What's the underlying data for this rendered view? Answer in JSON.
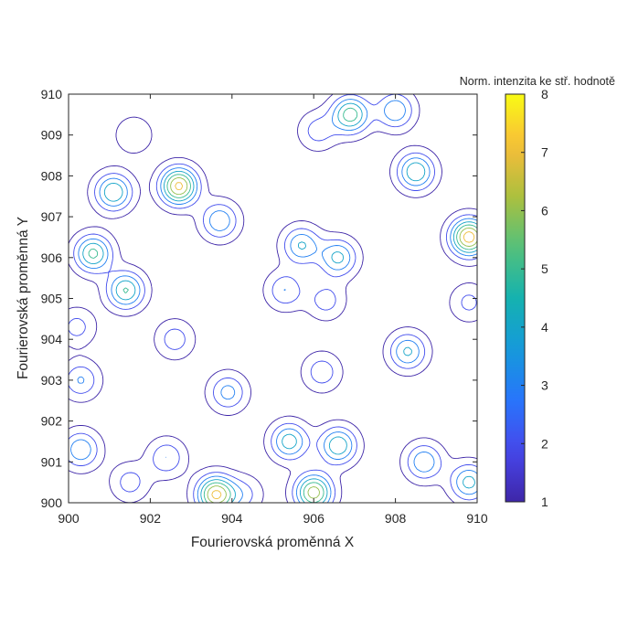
{
  "chart_data": {
    "type": "contour",
    "xlabel": "Fourierovská proměnná X",
    "ylabel": "Fourierovská proměnná Y",
    "xlim": [
      900,
      910
    ],
    "ylim": [
      900,
      910
    ],
    "xticks": [
      "900",
      "902",
      "904",
      "906",
      "908",
      "910"
    ],
    "yticks": [
      "900",
      "901",
      "902",
      "903",
      "904",
      "905",
      "906",
      "907",
      "908",
      "909",
      "910"
    ],
    "colorbar": {
      "label": "Norm. intenzita ke stř. hodnotě",
      "range": [
        1,
        8
      ],
      "ticks": [
        "1",
        "2",
        "3",
        "4",
        "5",
        "6",
        "7",
        "8"
      ],
      "colormap": "parula"
    },
    "contour_levels": [
      1,
      2,
      3,
      4,
      5,
      6,
      7,
      8
    ],
    "grid": false,
    "peaks": [
      {
        "x": 902.7,
        "y": 907.75,
        "value": 7.3
      },
      {
        "x": 909.8,
        "y": 906.5,
        "value": 7.6
      },
      {
        "x": 903.6,
        "y": 900.2,
        "value": 7.2
      },
      {
        "x": 906.0,
        "y": 900.25,
        "value": 6.6
      },
      {
        "x": 900.6,
        "y": 906.1,
        "value": 5.3
      },
      {
        "x": 901.1,
        "y": 907.6,
        "value": 5.0
      },
      {
        "x": 901.4,
        "y": 905.2,
        "value": 5.1
      },
      {
        "x": 906.9,
        "y": 909.5,
        "value": 5.6
      },
      {
        "x": 908.5,
        "y": 908.1,
        "value": 5.0
      },
      {
        "x": 906.6,
        "y": 901.4,
        "value": 4.9
      },
      {
        "x": 905.4,
        "y": 901.5,
        "value": 4.6
      },
      {
        "x": 908.3,
        "y": 903.7,
        "value": 4.2
      },
      {
        "x": 909.8,
        "y": 900.5,
        "value": 4.4
      },
      {
        "x": 908.7,
        "y": 901.0,
        "value": 3.9
      },
      {
        "x": 903.7,
        "y": 906.9,
        "value": 3.9
      },
      {
        "x": 903.9,
        "y": 902.7,
        "value": 3.4
      },
      {
        "x": 906.6,
        "y": 906.0,
        "value": 4.3
      },
      {
        "x": 905.7,
        "y": 906.3,
        "value": 4.1
      },
      {
        "x": 900.3,
        "y": 901.3,
        "value": 3.9
      },
      {
        "x": 908.0,
        "y": 909.6,
        "value": 3.9
      },
      {
        "x": 900.3,
        "y": 903.0,
        "value": 3.1
      },
      {
        "x": 902.4,
        "y": 901.1,
        "value": 3.0
      },
      {
        "x": 905.3,
        "y": 905.2,
        "value": 3.0
      },
      {
        "x": 902.6,
        "y": 904.0,
        "value": 2.6
      },
      {
        "x": 906.3,
        "y": 904.95,
        "value": 2.5
      },
      {
        "x": 901.5,
        "y": 900.5,
        "value": 2.5
      },
      {
        "x": 906.2,
        "y": 903.2,
        "value": 2.7
      },
      {
        "x": 900.2,
        "y": 904.3,
        "value": 2.4
      },
      {
        "x": 906.1,
        "y": 909.1,
        "value": 2.5
      },
      {
        "x": 901.6,
        "y": 909.0,
        "value": 2.0
      },
      {
        "x": 904.3,
        "y": 900.2,
        "value": 2.2
      },
      {
        "x": 909.8,
        "y": 904.9,
        "value": 2.3
      }
    ]
  }
}
